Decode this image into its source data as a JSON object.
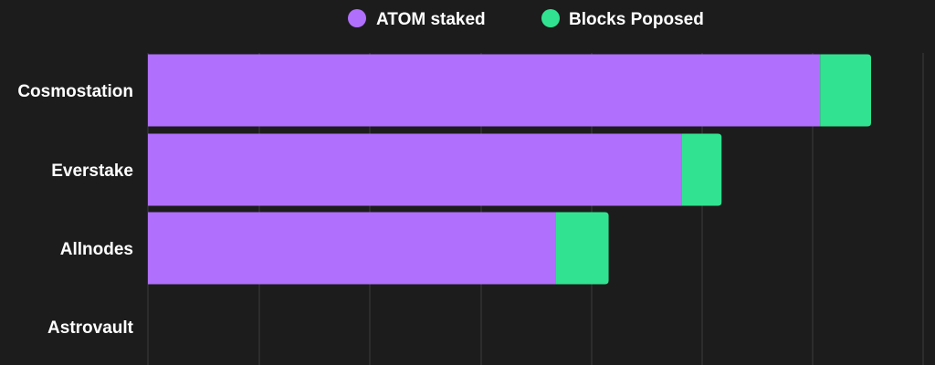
{
  "chart_data": {
    "type": "bar",
    "orientation": "horizontal",
    "stacked": true,
    "categories": [
      "Cosmostation",
      "Everstake",
      "Allnodes",
      "Astrovault"
    ],
    "series": [
      {
        "name": "ATOM staked",
        "color": "#b06ffc",
        "values": [
          60.7,
          48.2,
          36.8,
          0
        ]
      },
      {
        "name": "Blocks Poposed",
        "color": "#31e390",
        "values": [
          4.6,
          3.6,
          4.8,
          0
        ]
      }
    ],
    "xlim": [
      0,
      70
    ],
    "grid": true,
    "legend_position": "top-center"
  },
  "colors": {
    "background": "#1c1c1c",
    "gridline": "#3d3d3d",
    "label_text": "#ffffff"
  }
}
